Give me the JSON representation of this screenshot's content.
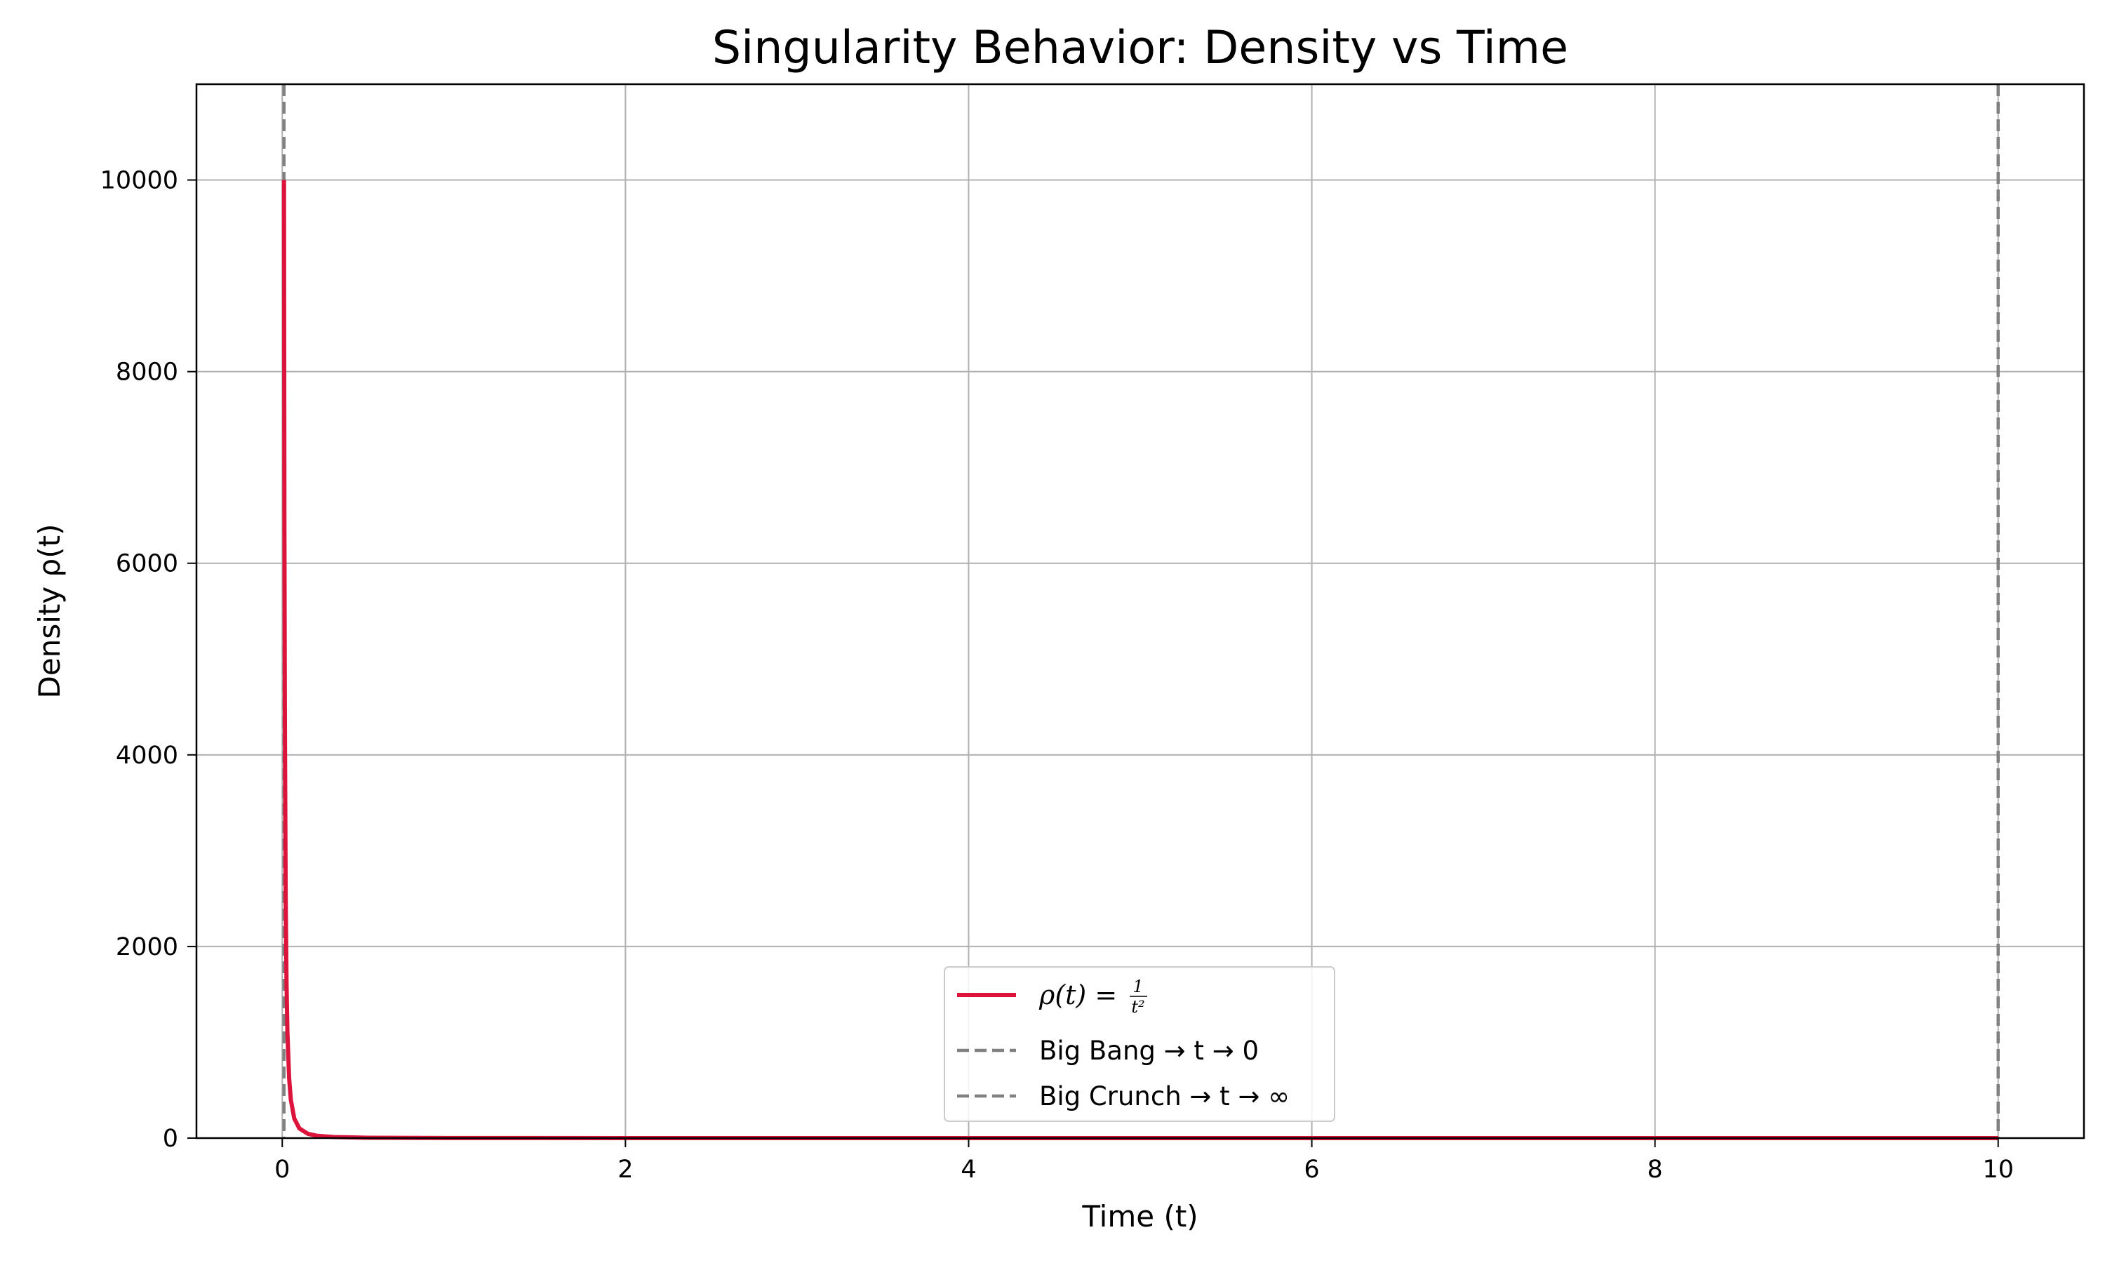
{
  "chart_data": {
    "type": "line",
    "title": "Singularity Behavior: Density vs Time",
    "xlabel": "Time (t)",
    "ylabel": "Density ρ(t)",
    "xlim": [
      -0.5,
      10.5
    ],
    "ylim": [
      0,
      11000
    ],
    "x_ticks": [
      0,
      2,
      4,
      6,
      8,
      10
    ],
    "y_ticks": [
      0,
      2000,
      4000,
      6000,
      8000,
      10000
    ],
    "x_tick_labels": [
      "0",
      "2",
      "4",
      "6",
      "8",
      "10"
    ],
    "y_tick_labels": [
      "0",
      "2000",
      "4000",
      "6000",
      "8000",
      "10000"
    ],
    "grid": true,
    "legend_position": "lower-center",
    "series": [
      {
        "name": "ρ(t) = 1/t²",
        "function": "1/t^2",
        "x": [
          0.01,
          0.0125,
          0.015,
          0.02,
          0.025,
          0.03,
          0.04,
          0.05,
          0.07,
          0.1,
          0.15,
          0.2,
          0.3,
          0.5,
          1,
          2,
          4,
          6,
          8,
          10
        ],
        "y": [
          10000,
          6400,
          4444,
          2500,
          1600,
          1111,
          625,
          400,
          204,
          100,
          44.4,
          25,
          11.1,
          4,
          1,
          0.25,
          0.0625,
          0.0278,
          0.0156,
          0.01
        ],
        "color": "#dc143c",
        "style": "solid"
      }
    ],
    "reference_lines": [
      {
        "name": "Big Bang → t → 0",
        "x": 0.01,
        "color": "#808080",
        "style": "dashed"
      },
      {
        "name": "Big Crunch → t → ∞",
        "x": 10,
        "color": "#808080",
        "style": "dashed"
      }
    ]
  }
}
